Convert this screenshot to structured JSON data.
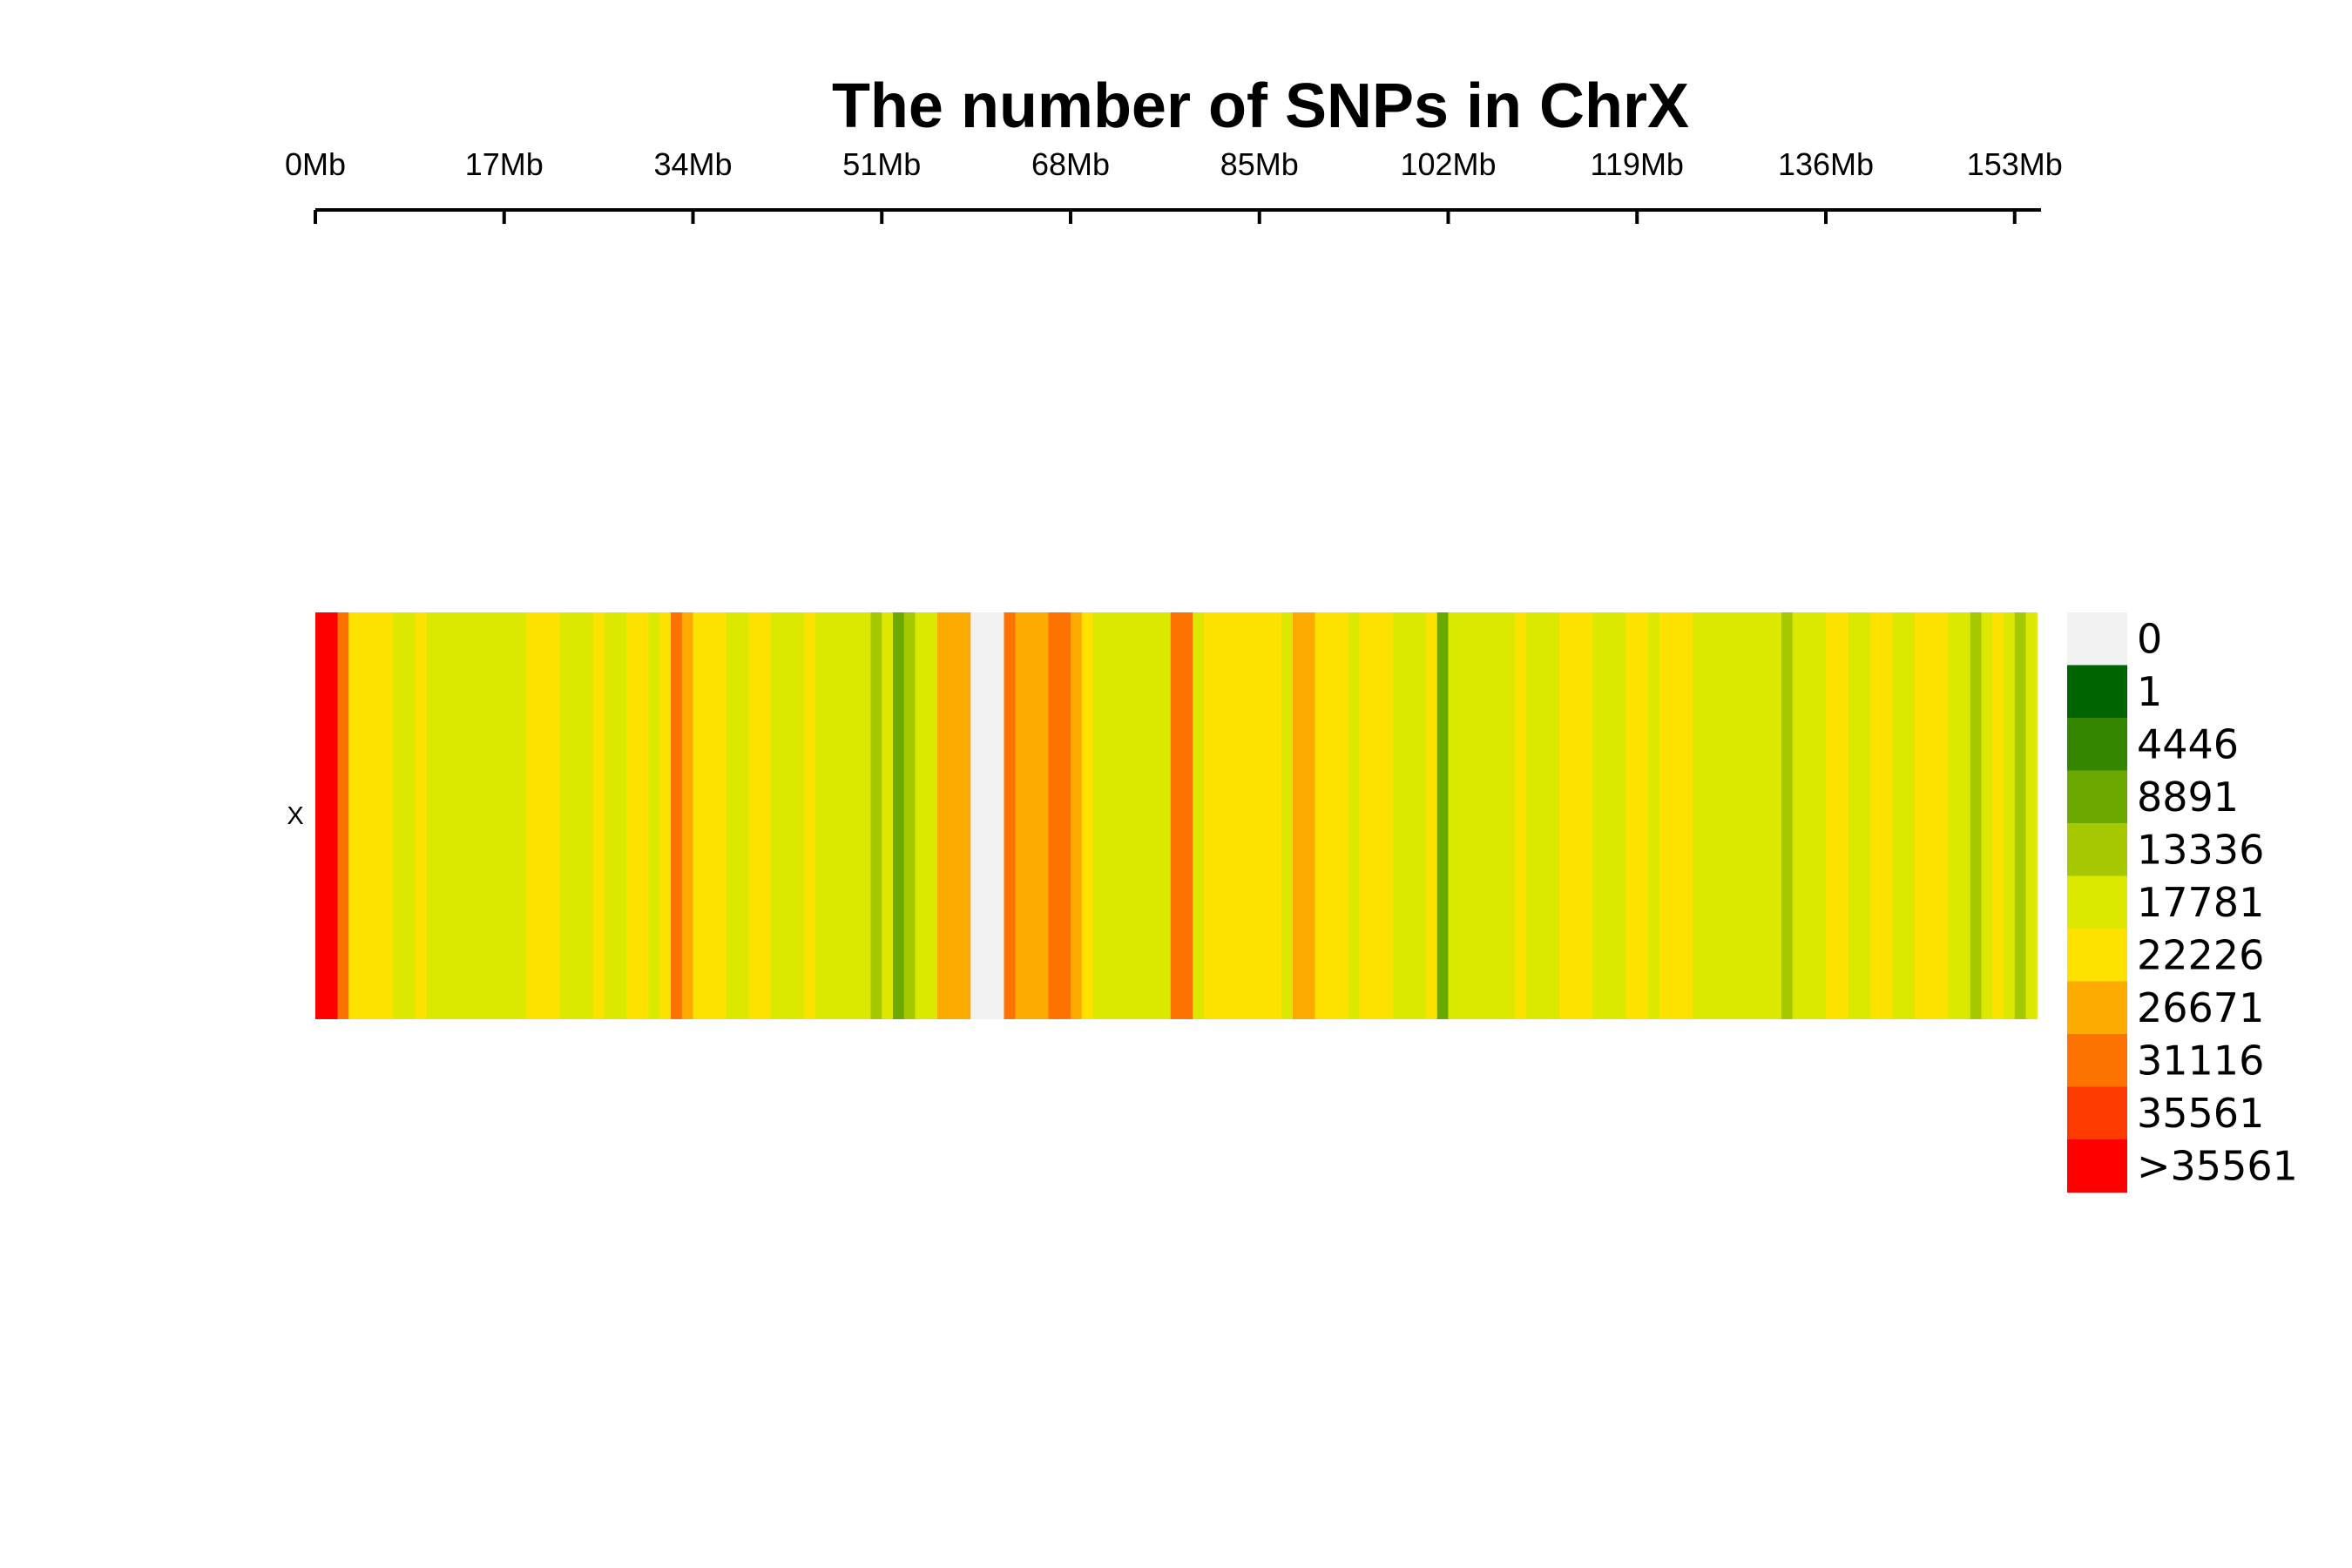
{
  "chart_data": {
    "type": "heatmap",
    "title": "The number of SNPs in ChrX",
    "row_labels": [
      "X"
    ],
    "x_ticks": [
      "0Mb",
      "17Mb",
      "34Mb",
      "51Mb",
      "68Mb",
      "85Mb",
      "102Mb",
      "119Mb",
      "136Mb",
      "153Mb"
    ],
    "x_tick_values": [
      0,
      17,
      34,
      51,
      68,
      85,
      102,
      119,
      136,
      153
    ],
    "xlim": [
      0,
      155
    ],
    "bin_size_mb": 1,
    "unit": "Mb",
    "legend": {
      "placement": "right",
      "labels": [
        "0",
        "1",
        "4446",
        "8891",
        "13336",
        "17781",
        "22226",
        "26671",
        "31116",
        "35561",
        ">35561"
      ],
      "colors": [
        "#f2f2f2",
        "#006400",
        "#348600",
        "#6ba800",
        "#a5c800",
        "#dde800",
        "#fde200",
        "#fdaa00",
        "#fd7200",
        "#fd3a00",
        "#fd0000"
      ]
    },
    "values": [
      38000,
      36000,
      33000,
      26000,
      26000,
      24000,
      23000,
      22000,
      20000,
      23000,
      21000,
      22000,
      22000,
      21000,
      20000,
      21000,
      19000,
      22000,
      21000,
      26000,
      26000,
      23000,
      22000,
      22000,
      21000,
      23000,
      22000,
      22000,
      24000,
      24000,
      22000,
      23000,
      33000,
      28000,
      25000,
      25000,
      24000,
      21000,
      22000,
      23000,
      23000,
      22000,
      21000,
      22000,
      23000,
      21000,
      22000,
      21000,
      22000,
      18000,
      17000,
      19000,
      10000,
      17000,
      20000,
      22000,
      29000,
      29000,
      29000,
      0,
      0,
      0,
      32000,
      30000,
      30000,
      28000,
      32000,
      34000,
      28000,
      24000,
      21000,
      22000,
      21000,
      19000,
      18000,
      20000,
      22000,
      33000,
      35000,
      22000,
      24000,
      25000,
      25000,
      23000,
      26000,
      26000,
      24000,
      22000,
      27000,
      27000,
      25000,
      24000,
      23000,
      22000,
      26000,
      26000,
      25000,
      22000,
      21000,
      22000,
      23000,
      13000,
      18000,
      20000,
      19000,
      19000,
      20000,
      21000,
      23000,
      22000,
      20000,
      21000,
      24000,
      24000,
      25000,
      22000,
      20000,
      22000,
      23000,
      24000,
      22000,
      25000,
      26000,
      26000,
      21000,
      22000,
      21000,
      19000,
      20000,
      18000,
      19000,
      20000,
      16000,
      20000,
      22000,
      22000,
      23000,
      24000,
      21000,
      22000,
      24000,
      26000,
      22000,
      22000,
      25000,
      26000,
      26000,
      20000,
      22000,
      16000,
      21000,
      23000,
      20000,
      15000,
      22000
    ]
  }
}
